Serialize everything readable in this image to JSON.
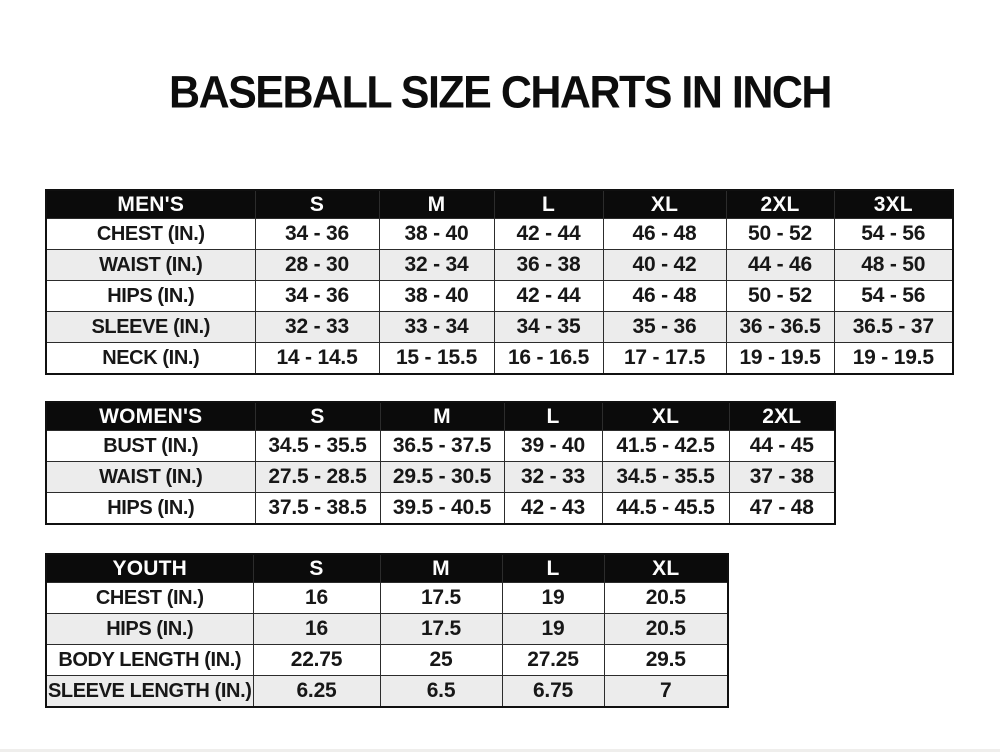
{
  "title": "BASEBALL SIZE CHARTS IN INCH",
  "colors": {
    "background": "#ffffff",
    "header_bg": "#0b0b0b",
    "header_text": "#fdfdfd",
    "alt_row_bg": "#ececec",
    "border": "#2c2c2c",
    "text": "#171717"
  },
  "tables": [
    {
      "name": "mens",
      "header": [
        "MEN'S",
        "S",
        "M",
        "L",
        "XL",
        "2XL",
        "3XL"
      ],
      "rows": [
        [
          "CHEST (IN.)",
          "34 - 36",
          "38 - 40",
          "42 - 44",
          "46 - 48",
          "50 - 52",
          "54 - 56"
        ],
        [
          "WAIST (IN.)",
          "28 - 30",
          "32 - 34",
          "36 - 38",
          "40 - 42",
          "44 - 46",
          "48 - 50"
        ],
        [
          "HIPS (IN.)",
          "34 - 36",
          "38 - 40",
          "42 - 44",
          "46 - 48",
          "50 - 52",
          "54 - 56"
        ],
        [
          "SLEEVE (IN.)",
          "32 - 33",
          "33 - 34",
          "34 - 35",
          "35 - 36",
          "36 - 36.5",
          "36.5 - 37"
        ],
        [
          "NECK (IN.)",
          "14 - 14.5",
          "15 - 15.5",
          "16 - 16.5",
          "17 - 17.5",
          "19 - 19.5",
          "19 - 19.5"
        ]
      ]
    },
    {
      "name": "womens",
      "header": [
        "WOMEN'S",
        "S",
        "M",
        "L",
        "XL",
        "2XL"
      ],
      "rows": [
        [
          "BUST (IN.)",
          "34.5 - 35.5",
          "36.5 - 37.5",
          "39 - 40",
          "41.5 - 42.5",
          "44 - 45"
        ],
        [
          "WAIST (IN.)",
          "27.5 - 28.5",
          "29.5 - 30.5",
          "32 - 33",
          "34.5 - 35.5",
          "37 - 38"
        ],
        [
          "HIPS (IN.)",
          "37.5 - 38.5",
          "39.5 - 40.5",
          "42 - 43",
          "44.5 - 45.5",
          "47 - 48"
        ]
      ]
    },
    {
      "name": "youth",
      "header": [
        "YOUTH",
        "S",
        "M",
        "L",
        "XL"
      ],
      "rows": [
        [
          "CHEST (IN.)",
          "16",
          "17.5",
          "19",
          "20.5"
        ],
        [
          "HIPS (IN.)",
          "16",
          "17.5",
          "19",
          "20.5"
        ],
        [
          "BODY LENGTH (IN.)",
          "22.75",
          "25",
          "27.25",
          "29.5"
        ],
        [
          "SLEEVE LENGTH (IN.)",
          "6.25",
          "6.5",
          "6.75",
          "7"
        ]
      ]
    }
  ]
}
